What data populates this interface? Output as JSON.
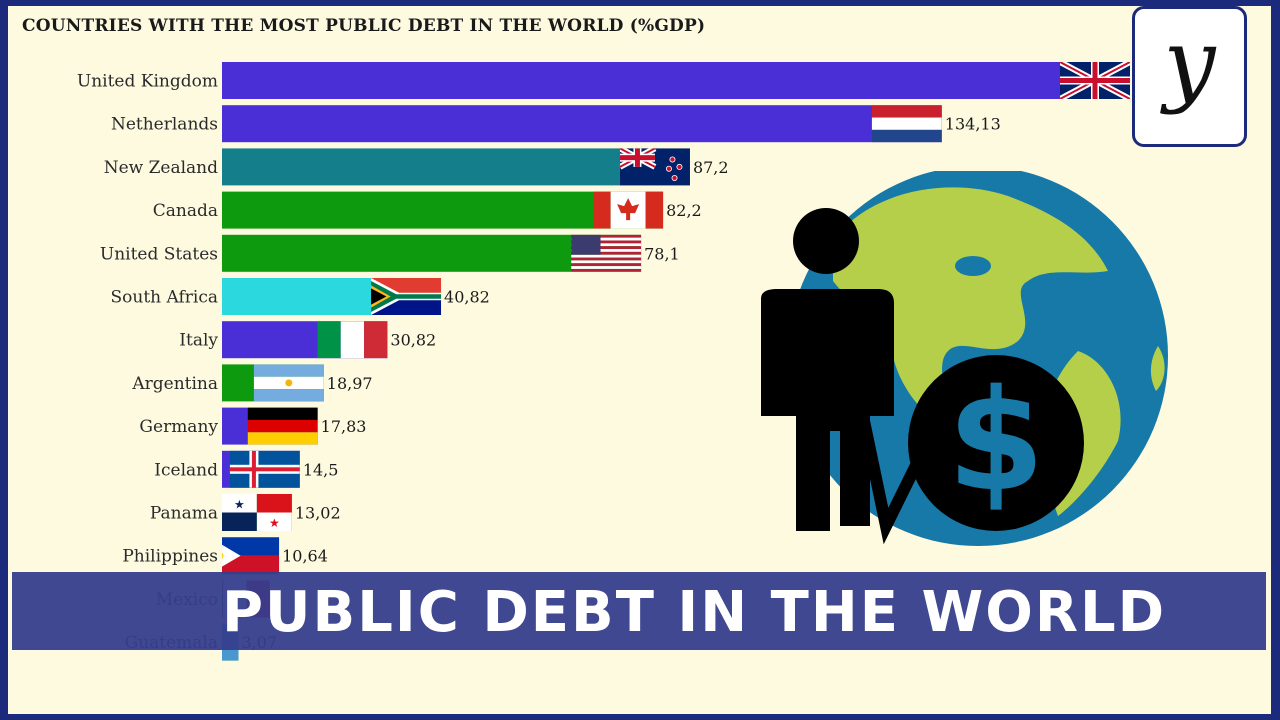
{
  "header": {
    "title": "COUNTRIES WITH THE MOST PUBLIC DEBT IN THE WORLD (%GDP)"
  },
  "banner": {
    "text": "PUBLIC DEBT IN THE WORLD"
  },
  "logo": {
    "letter": "y"
  },
  "chart_data": {
    "type": "bar",
    "orientation": "horizontal",
    "title": "COUNTRIES WITH THE MOST PUBLIC DEBT IN THE WORLD (%GDP)",
    "xlim": [
      0,
      180
    ],
    "categories": [
      "United Kingdom",
      "Netherlands",
      "New Zealand",
      "Canada",
      "United States",
      "South Africa",
      "Italy",
      "Argentina",
      "Germany",
      "Iceland",
      "Panama",
      "Philippines",
      "Mexico",
      "Guatemala"
    ],
    "values": [
      169.2,
      134.13,
      87.2,
      82.2,
      78.1,
      40.82,
      30.82,
      18.97,
      17.83,
      14.5,
      13.02,
      10.64,
      8.9,
      3.07
    ],
    "value_labels": [
      "",
      "134,13",
      "87,2",
      "82,2",
      "78,1",
      "40,82",
      "30,82",
      "18,97",
      "17,83",
      "14,5",
      "13,02",
      "10,64",
      "",
      "3,07"
    ],
    "bar_colors": [
      "#4a2fd6",
      "#4a2fd6",
      "#147f8a",
      "#0e9a0e",
      "#0e9a0e",
      "#2ad8de",
      "#4a2fd6",
      "#0e9a0e",
      "#4a2fd6",
      "#4a2fd6",
      "#0e9a0e",
      "#29aae3",
      "#4a2fd6",
      "#0e9a0e"
    ],
    "flags": [
      "uk",
      "netherlands",
      "newzealand",
      "canada",
      "usa",
      "southafrica",
      "italy",
      "argentina",
      "germany",
      "iceland",
      "panama",
      "philippines",
      "mexico",
      "guatemala"
    ]
  }
}
